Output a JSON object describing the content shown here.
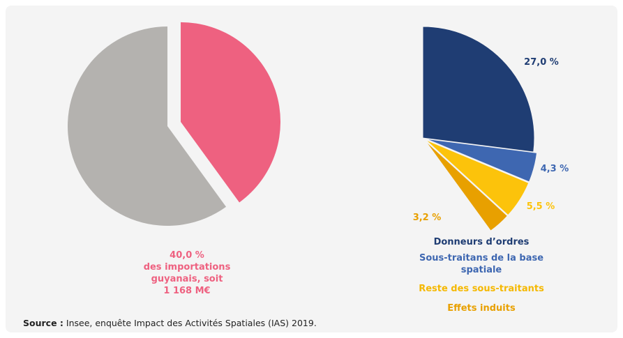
{
  "chart_data": [
    {
      "type": "pie",
      "values": [
        40,
        60
      ],
      "colors": [
        "#ee6180",
        "#b4b2af"
      ],
      "explode": [
        true,
        false
      ],
      "value_labels": [
        "40,0 %",
        null
      ],
      "annotation": [
        "des importations",
        "guyanais, soit",
        "1 168 M€"
      ]
    },
    {
      "type": "pie",
      "categories": [
        "Donneurs d’ordres",
        "Sous-traitans de la base spatiale",
        "Reste des sous-traitants",
        "Effets induits"
      ],
      "values": [
        27.0,
        4.3,
        5.5,
        3.2
      ],
      "value_labels": [
        "27,0 %",
        "4,3 %",
        "5,5 %",
        "3,2 %"
      ],
      "colors": [
        "#1f3d73",
        "#3e67b1",
        "#fcc30b",
        "#e8a000"
      ],
      "total": 100
    }
  ],
  "source_label": "Source :",
  "source": "Insee, enquête Impact des Activités Spatiales (IAS) 2019."
}
